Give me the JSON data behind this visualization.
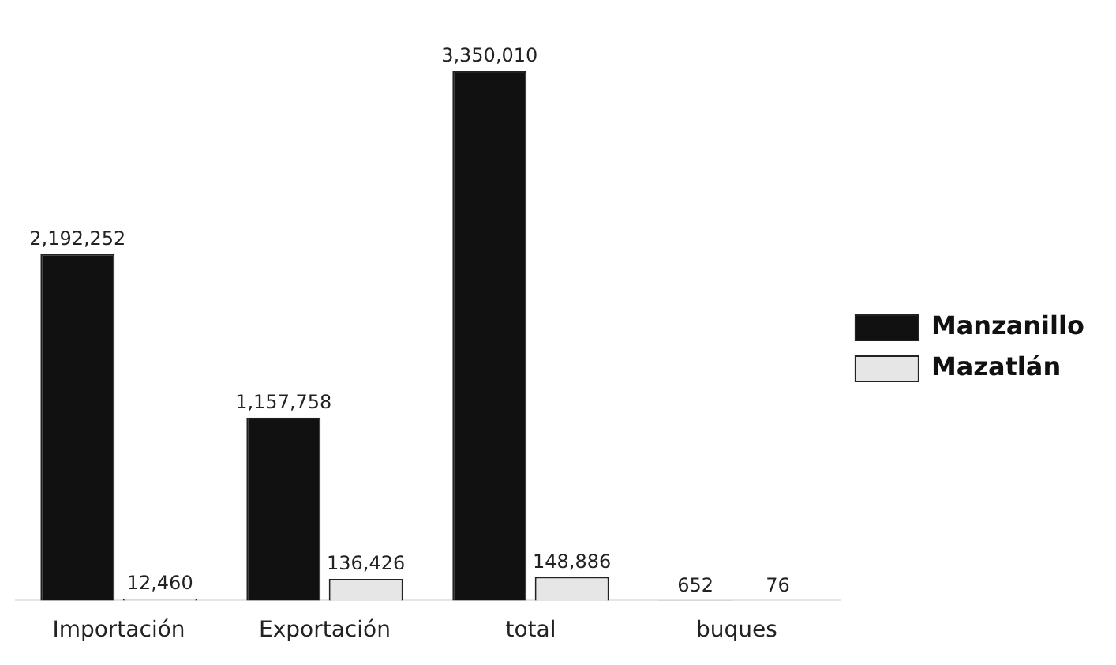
{
  "chart_data": {
    "type": "bar",
    "categories": [
      "Importación",
      "Exportación",
      "total",
      "buques"
    ],
    "series": [
      {
        "name": "Manzanillo",
        "color": "#111111",
        "values": [
          2192252,
          1157758,
          3350010,
          652
        ],
        "value_labels": [
          "2,192,252",
          "1,157,758",
          "3,350,010",
          "652"
        ]
      },
      {
        "name": "Mazatlán",
        "color": "#e6e6e6",
        "values": [
          12460,
          136426,
          148886,
          76
        ],
        "value_labels": [
          "12,460",
          "136,426",
          "148,886",
          "76"
        ]
      }
    ],
    "legend": "right",
    "grid": false
  }
}
